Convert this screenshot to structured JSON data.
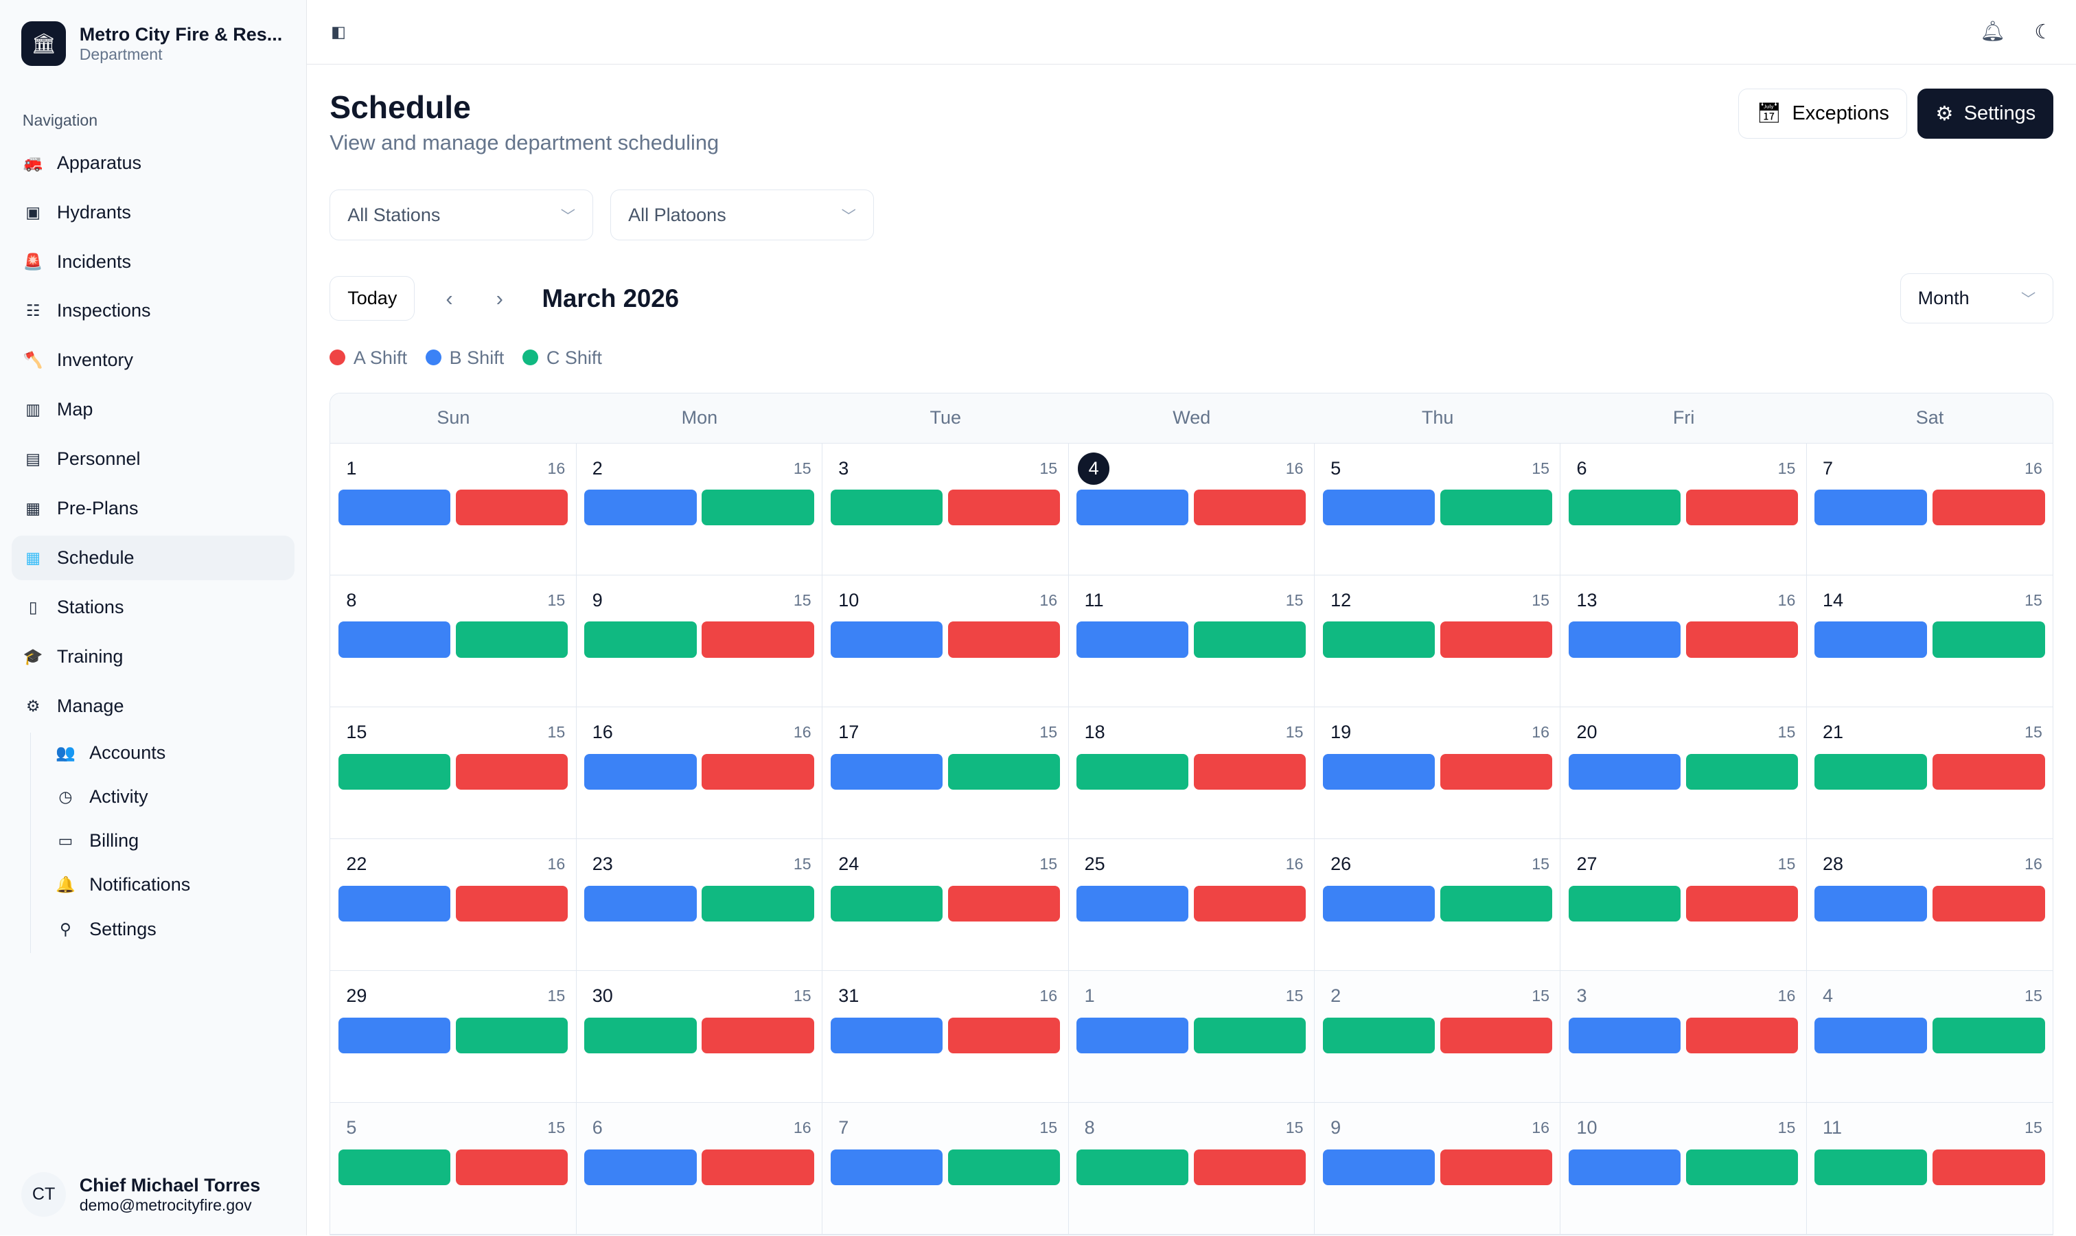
{
  "org": {
    "name": "Metro City Fire & Res...",
    "sub": "Department"
  },
  "nav_label": "Navigation",
  "nav": [
    {
      "label": "Apparatus",
      "icon": "fire-truck-icon",
      "g": "🚒"
    },
    {
      "label": "Hydrants",
      "icon": "hydrant-icon",
      "g": "▣"
    },
    {
      "label": "Incidents",
      "icon": "siren-icon",
      "g": "🚨"
    },
    {
      "label": "Inspections",
      "icon": "clipboard-check-icon",
      "g": "☷"
    },
    {
      "label": "Inventory",
      "icon": "axe-icon",
      "g": "🪓"
    },
    {
      "label": "Map",
      "icon": "map-icon",
      "g": "▥"
    },
    {
      "label": "Personnel",
      "icon": "id-card-icon",
      "g": "▤"
    },
    {
      "label": "Pre-Plans",
      "icon": "building-shield-icon",
      "g": "▦"
    },
    {
      "label": "Schedule",
      "icon": "calendar-icon",
      "g": "▦",
      "active": true
    },
    {
      "label": "Stations",
      "icon": "building-icon",
      "g": "▯"
    },
    {
      "label": "Training",
      "icon": "graduation-cap-icon",
      "g": "🎓"
    },
    {
      "label": "Manage",
      "icon": "gear-icon",
      "g": "⚙"
    }
  ],
  "manage": [
    {
      "label": "Accounts",
      "icon": "users-icon",
      "g": "👥"
    },
    {
      "label": "Activity",
      "icon": "clock-icon",
      "g": "◷"
    },
    {
      "label": "Billing",
      "icon": "credit-card-icon",
      "g": "▭"
    },
    {
      "label": "Notifications",
      "icon": "bell-icon",
      "g": "🔔"
    },
    {
      "label": "Settings",
      "icon": "toggle-icon",
      "g": "⚲"
    }
  ],
  "user": {
    "initials": "CT",
    "name": "Chief Michael Torres",
    "email": "demo@metrocityfire.gov"
  },
  "page": {
    "title": "Schedule",
    "subtitle": "View and manage department scheduling",
    "exceptions": "Exceptions",
    "settings": "Settings"
  },
  "filters": {
    "station": "All Stations",
    "platoon": "All Platoons"
  },
  "calendar": {
    "today": "Today",
    "month": "March 2026",
    "view": "Month",
    "today_date": 4,
    "days": [
      "Sun",
      "Mon",
      "Tue",
      "Wed",
      "Thu",
      "Fri",
      "Sat"
    ],
    "shifts": {
      "A": {
        "label": "A Shift",
        "color": "#ef4444"
      },
      "B": {
        "label": "B Shift",
        "color": "#3b82f6"
      },
      "C": {
        "label": "C Shift",
        "color": "#10b981"
      }
    },
    "cells": [
      [
        "1",
        16,
        "BA",
        1
      ],
      [
        "2",
        15,
        "BC",
        1
      ],
      [
        "3",
        15,
        "CA",
        1
      ],
      [
        "4",
        16,
        "BA",
        1
      ],
      [
        "5",
        15,
        "BC",
        1
      ],
      [
        "6",
        15,
        "CA",
        1
      ],
      [
        "7",
        16,
        "BA",
        1
      ],
      [
        "8",
        15,
        "BC",
        1
      ],
      [
        "9",
        15,
        "CA",
        1
      ],
      [
        "10",
        16,
        "BA",
        1
      ],
      [
        "11",
        15,
        "BC",
        1
      ],
      [
        "12",
        15,
        "CA",
        1
      ],
      [
        "13",
        16,
        "BA",
        1
      ],
      [
        "14",
        15,
        "BC",
        1
      ],
      [
        "15",
        15,
        "CA",
        1
      ],
      [
        "16",
        16,
        "BA",
        1
      ],
      [
        "17",
        15,
        "BC",
        1
      ],
      [
        "18",
        15,
        "CA",
        1
      ],
      [
        "19",
        16,
        "BA",
        1
      ],
      [
        "20",
        15,
        "BC",
        1
      ],
      [
        "21",
        15,
        "CA",
        1
      ],
      [
        "22",
        16,
        "BA",
        1
      ],
      [
        "23",
        15,
        "BC",
        1
      ],
      [
        "24",
        15,
        "CA",
        1
      ],
      [
        "25",
        16,
        "BA",
        1
      ],
      [
        "26",
        15,
        "BC",
        1
      ],
      [
        "27",
        15,
        "CA",
        1
      ],
      [
        "28",
        16,
        "BA",
        1
      ],
      [
        "29",
        15,
        "BC",
        1
      ],
      [
        "30",
        15,
        "CA",
        1
      ],
      [
        "31",
        16,
        "BA",
        1
      ],
      [
        "1",
        15,
        "BC",
        0
      ],
      [
        "2",
        15,
        "CA",
        0
      ],
      [
        "3",
        16,
        "BA",
        0
      ],
      [
        "4",
        15,
        "BC",
        0
      ],
      [
        "5",
        15,
        "CA",
        0
      ],
      [
        "6",
        16,
        "BA",
        0
      ],
      [
        "7",
        15,
        "BC",
        0
      ],
      [
        "8",
        15,
        "CA",
        0
      ],
      [
        "9",
        16,
        "BA",
        0
      ],
      [
        "10",
        15,
        "BC",
        0
      ],
      [
        "11",
        15,
        "CA",
        0
      ]
    ]
  }
}
